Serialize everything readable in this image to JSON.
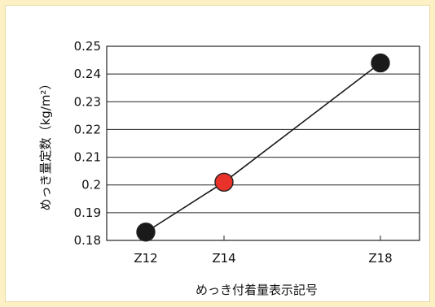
{
  "chart_data": {
    "type": "line",
    "xlabel": "めっき付着量表示記号",
    "ylabel": "めっき量定数（kg/m²）",
    "categories": [
      "Z12",
      "Z14",
      "Z18"
    ],
    "x_positions": [
      12,
      14,
      18
    ],
    "xlim": [
      11,
      19
    ],
    "ylim": [
      0.18,
      0.25
    ],
    "yticks": [
      "0.18",
      "0.19",
      "0.2",
      "0.21",
      "0.22",
      "0.23",
      "0.24",
      "0.25"
    ],
    "grid": "horizontal",
    "series": [
      {
        "values": [
          0.183,
          0.201,
          0.244
        ]
      }
    ],
    "point_colors": [
      "#1a1a1a",
      "#e8322a",
      "#1a1a1a"
    ],
    "line_color": "#1a1a1a",
    "background": "#ffffff",
    "frame_color": "#fcf0c4"
  }
}
